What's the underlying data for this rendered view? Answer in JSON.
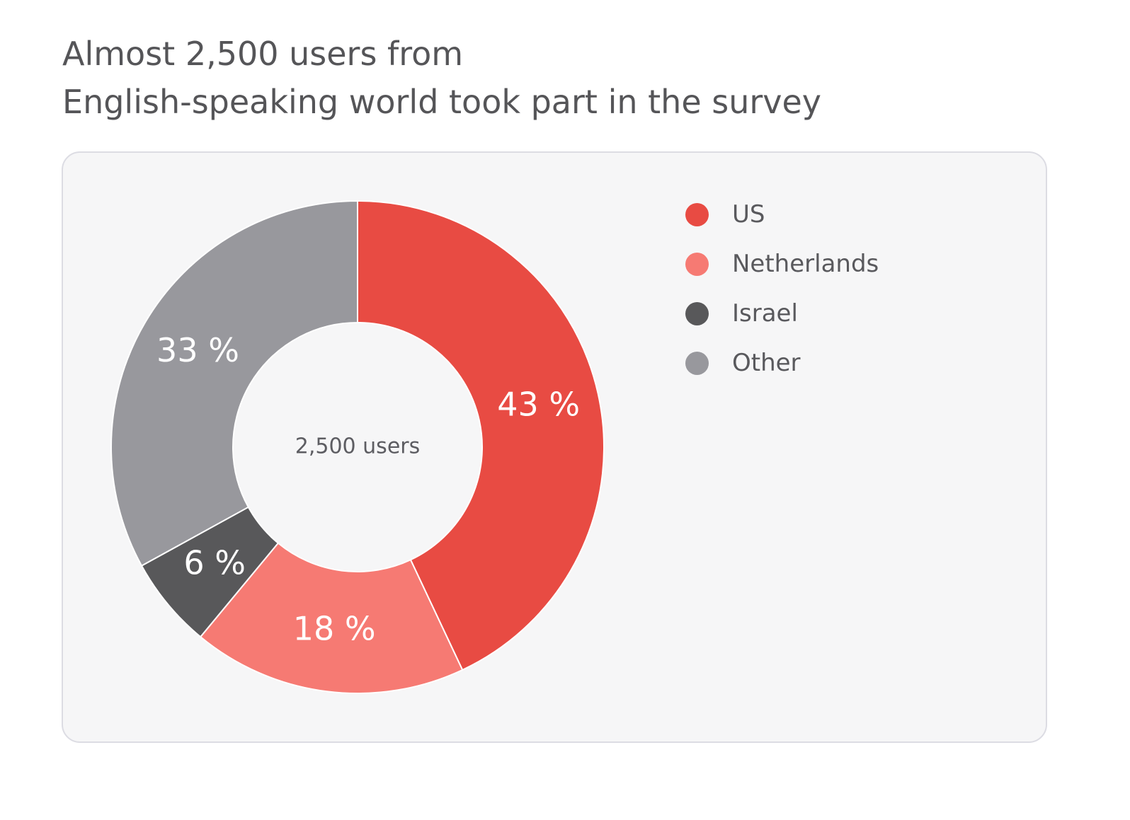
{
  "title": {
    "line1": "Almost 2,500 users from",
    "line2": "English-speaking world took part in the survey"
  },
  "chart_data": {
    "type": "pie",
    "style": "donut",
    "center_label": "2,500 users",
    "legend_position": "right",
    "categories": [
      "US",
      "Netherlands",
      "Israel",
      "Other"
    ],
    "values": [
      43,
      18,
      6,
      33
    ],
    "value_labels": [
      "43 %",
      "18 %",
      "6 %",
      "33 %"
    ],
    "colors": [
      "#e84b43",
      "#f67a73",
      "#58585a",
      "#98989d"
    ]
  }
}
